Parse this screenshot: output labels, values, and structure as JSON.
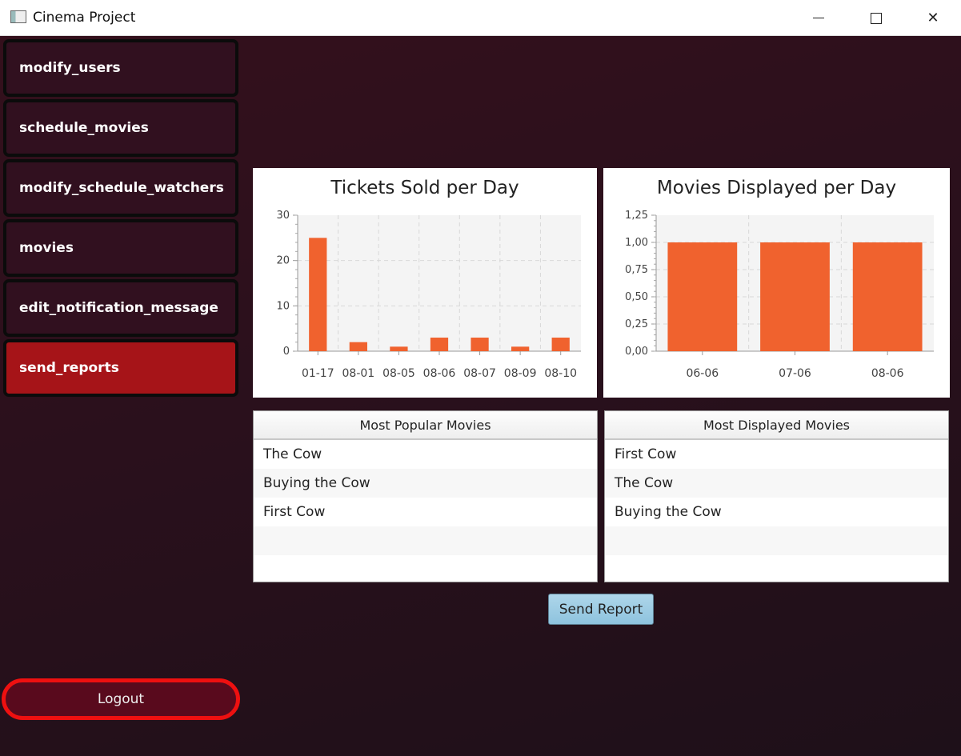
{
  "window": {
    "title": "Cinema Project"
  },
  "sidebar": {
    "items": [
      {
        "label": "modify_users"
      },
      {
        "label": "schedule_movies"
      },
      {
        "label": "modify_schedule_watchers"
      },
      {
        "label": "movies"
      },
      {
        "label": "edit_notification_message"
      },
      {
        "label": "send_reports"
      }
    ],
    "active_item": "send_reports",
    "logout_label": "Logout"
  },
  "charts": {
    "tickets": {
      "title": "Tickets Sold per Day"
    },
    "movies": {
      "title": "Movies Displayed per Day"
    }
  },
  "chart_data": [
    {
      "type": "bar",
      "title": "Tickets Sold per Day",
      "categories": [
        "01-17",
        "08-01",
        "08-05",
        "08-06",
        "08-07",
        "08-09",
        "08-10"
      ],
      "values": [
        25,
        2,
        1,
        3,
        3,
        1,
        3
      ],
      "ylim": [
        0,
        30
      ],
      "yticks": [
        "0",
        "10",
        "20",
        "30"
      ],
      "grid": true,
      "bar_color": "#f0622e"
    },
    {
      "type": "bar",
      "title": "Movies Displayed per Day",
      "categories": [
        "06-06",
        "07-06",
        "08-06"
      ],
      "values": [
        1,
        1,
        1
      ],
      "ylim": [
        0,
        1.25
      ],
      "yticks": [
        "0,00",
        "0,25",
        "0,50",
        "0,75",
        "1,00",
        "1,25"
      ],
      "grid": true,
      "bar_color": "#f0622e"
    }
  ],
  "tables": {
    "popular": {
      "header": "Most Popular Movies",
      "rows": [
        "The Cow",
        "Buying the Cow",
        "First Cow"
      ]
    },
    "displayed": {
      "header": "Most Displayed Movies",
      "rows": [
        "First Cow",
        "The Cow",
        "Buying the Cow"
      ]
    }
  },
  "actions": {
    "send_report_label": "Send Report"
  },
  "colors": {
    "active_nav": "#a61418",
    "nav": "#31101f",
    "logout_border": "#ee1010",
    "bar": "#f0622e"
  }
}
